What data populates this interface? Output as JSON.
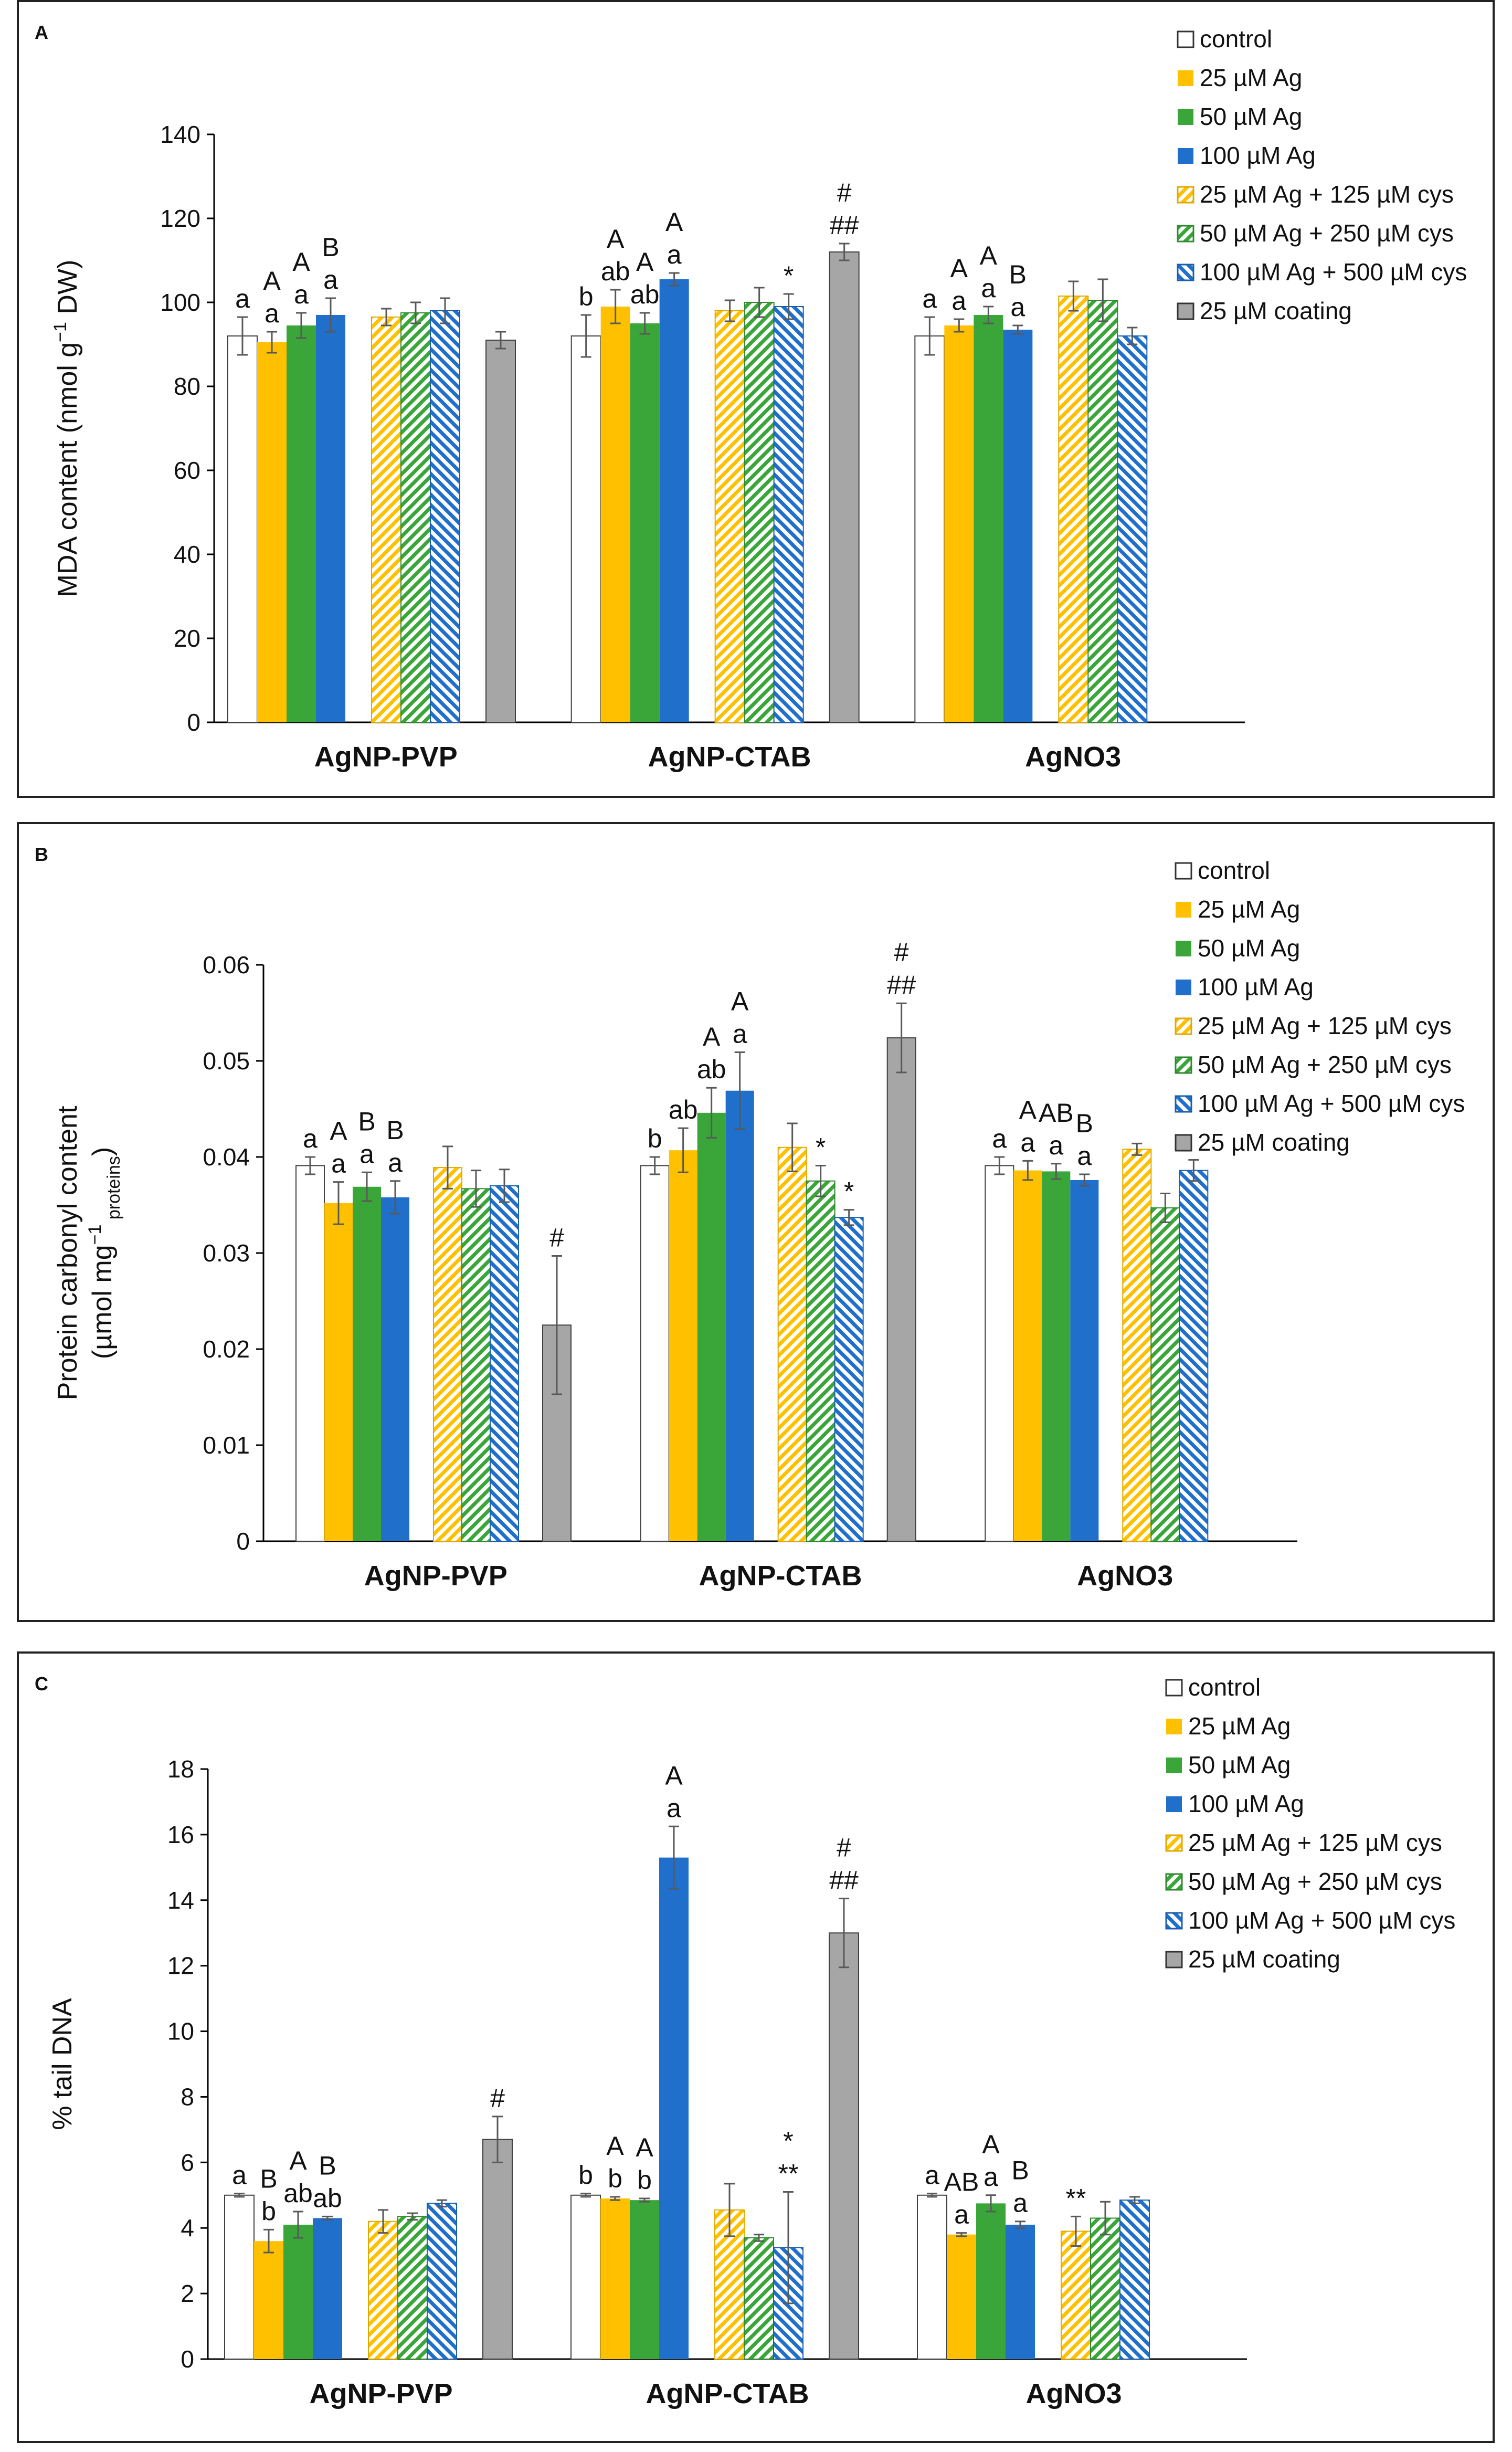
{
  "colors": {
    "control": "#ffffff",
    "ag25": "#ffc000",
    "ag50": "#3aa63a",
    "ag100": "#1f6fcb",
    "coating": "#a6a6a6",
    "axis": "#000000",
    "error": "#595959"
  },
  "legend": [
    {
      "label": "control",
      "style": "control"
    },
    {
      "label": "25 µM Ag",
      "style": "ag25"
    },
    {
      "label": "50 µM Ag",
      "style": "ag50"
    },
    {
      "label": "100 µM Ag",
      "style": "ag100"
    },
    {
      "label": "25 µM Ag + 125 µM cys",
      "style": "cys25"
    },
    {
      "label": "50 µM Ag + 250 µM cys",
      "style": "cys50"
    },
    {
      "label": "100 µM Ag + 500 µM cys",
      "style": "cys100"
    },
    {
      "label": "25 µM coating",
      "style": "coating"
    }
  ],
  "chart_data": [
    {
      "panel": "A",
      "type": "bar",
      "ylabel": "MDA content (nmol g−1 DW)",
      "ylim": [
        0,
        140
      ],
      "yticks": [
        "0",
        "20",
        "40",
        "60",
        "80",
        "100",
        "120",
        "140"
      ],
      "groups": [
        {
          "name": "AgNP-PVP",
          "values": [
            92,
            90.5,
            94.5,
            97,
            96.5,
            97.5,
            98,
            91
          ],
          "errors": [
            4.5,
            2.5,
            3,
            4,
            2,
            2.5,
            3,
            2
          ],
          "labels": [
            [
              "a"
            ],
            [
              "A",
              "a"
            ],
            [
              "A",
              "a"
            ],
            [
              "B",
              "a"
            ],
            [],
            [],
            [],
            []
          ]
        },
        {
          "name": "AgNP-CTAB",
          "values": [
            92,
            99,
            95,
            105.5,
            98,
            100,
            99,
            112
          ],
          "errors": [
            5,
            4,
            2.5,
            1.5,
            2.5,
            3.5,
            3,
            2
          ],
          "labels": [
            [
              "b"
            ],
            [
              "A",
              "ab"
            ],
            [
              "A",
              "ab"
            ],
            [
              "A",
              "a"
            ],
            [],
            [],
            [
              "*"
            ],
            [
              "#",
              "##"
            ]
          ]
        },
        {
          "name": "AgNO3",
          "values": [
            92,
            94.5,
            97,
            93.5,
            101.5,
            100.5,
            92,
            null
          ],
          "errors": [
            4.5,
            1.5,
            2,
            1,
            3.5,
            5,
            2,
            null
          ],
          "labels": [
            [
              "a"
            ],
            [
              "A",
              "a"
            ],
            [
              "A",
              "a"
            ],
            [
              "B",
              "a"
            ],
            [],
            [],
            [],
            []
          ]
        }
      ]
    },
    {
      "panel": "B",
      "type": "bar",
      "ylabel": "Protein carbonyl content (µmol mg−1 proteins)",
      "ylim": [
        0,
        0.06
      ],
      "yticks": [
        "0",
        "0.01",
        "0.02",
        "0.03",
        "0.04",
        "0.05",
        "0.06"
      ],
      "groups": [
        {
          "name": "AgNP-PVP",
          "values": [
            0.0391,
            0.0352,
            0.0369,
            0.0358,
            0.0389,
            0.0367,
            0.037,
            0.0225
          ],
          "errors": [
            0.0009,
            0.0022,
            0.0015,
            0.0017,
            0.0022,
            0.0019,
            0.0017,
            0.0072
          ],
          "labels": [
            [
              "a"
            ],
            [
              "A",
              "a"
            ],
            [
              "B",
              "a"
            ],
            [
              "B",
              "a"
            ],
            [],
            [],
            [],
            [
              "#"
            ]
          ]
        },
        {
          "name": "AgNP-CTAB",
          "values": [
            0.0391,
            0.0407,
            0.0446,
            0.0469,
            0.041,
            0.0375,
            0.0337,
            0.0524
          ],
          "errors": [
            0.0009,
            0.0023,
            0.0026,
            0.004,
            0.0025,
            0.0016,
            0.0008,
            0.0036
          ],
          "labels": [
            [
              "b"
            ],
            [
              "ab"
            ],
            [
              "A",
              "ab"
            ],
            [
              "A",
              "a"
            ],
            [],
            [
              "*"
            ],
            [
              "*"
            ],
            [
              "#",
              "##"
            ]
          ]
        },
        {
          "name": "AgNO3",
          "values": [
            0.0391,
            0.0386,
            0.0385,
            0.0376,
            0.0408,
            0.0347,
            0.0386,
            null
          ],
          "errors": [
            0.0009,
            0.001,
            0.0008,
            0.0006,
            0.0006,
            0.0015,
            0.0011,
            null
          ],
          "labels": [
            [
              "a"
            ],
            [
              "A",
              "a"
            ],
            [
              "AB",
              "a"
            ],
            [
              "B",
              "a"
            ],
            [],
            [],
            [],
            []
          ]
        }
      ]
    },
    {
      "panel": "C",
      "type": "bar",
      "ylabel": "% tail DNA",
      "ylim": [
        0,
        18
      ],
      "yticks": [
        "0",
        "2",
        "4",
        "6",
        "8",
        "10",
        "12",
        "14",
        "16",
        "18"
      ],
      "groups": [
        {
          "name": "AgNP-PVP",
          "values": [
            5.0,
            3.6,
            4.1,
            4.3,
            4.2,
            4.35,
            4.75,
            6.7
          ],
          "errors": [
            0.05,
            0.35,
            0.4,
            0.05,
            0.35,
            0.1,
            0.1,
            0.7
          ],
          "labels": [
            [
              "a"
            ],
            [
              "B",
              "b"
            ],
            [
              "A",
              "ab"
            ],
            [
              "B",
              "ab"
            ],
            [],
            [],
            [],
            [
              "#"
            ]
          ]
        },
        {
          "name": "AgNP-CTAB",
          "values": [
            5.0,
            4.9,
            4.85,
            15.3,
            4.55,
            3.7,
            3.4,
            13.0
          ],
          "errors": [
            0.05,
            0.05,
            0.05,
            0.95,
            0.8,
            0.1,
            1.7,
            1.05
          ],
          "labels": [
            [
              "b"
            ],
            [
              "A",
              "b"
            ],
            [
              "A",
              "b"
            ],
            [
              "A",
              "a"
            ],
            [],
            [],
            [
              "*",
              "**"
            ],
            [
              "#",
              "##"
            ]
          ]
        },
        {
          "name": "AgNO3",
          "values": [
            5.0,
            3.8,
            4.75,
            4.1,
            3.9,
            4.3,
            4.85,
            null
          ],
          "errors": [
            0.05,
            0.05,
            0.25,
            0.1,
            0.45,
            0.5,
            0.1,
            null
          ],
          "labels": [
            [
              "a"
            ],
            [
              "AB",
              "a"
            ],
            [
              "A",
              "a"
            ],
            [
              "B",
              "a"
            ],
            [
              "**"
            ],
            [],
            [],
            []
          ]
        }
      ]
    }
  ]
}
